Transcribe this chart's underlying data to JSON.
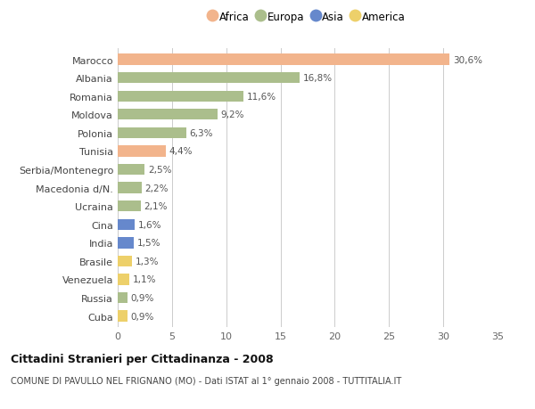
{
  "countries": [
    "Marocco",
    "Albania",
    "Romania",
    "Moldova",
    "Polonia",
    "Tunisia",
    "Serbia/Montenegro",
    "Macedonia d/N.",
    "Ucraina",
    "Cina",
    "India",
    "Brasile",
    "Venezuela",
    "Russia",
    "Cuba"
  ],
  "values": [
    30.6,
    16.8,
    11.6,
    9.2,
    6.3,
    4.4,
    2.5,
    2.2,
    2.1,
    1.6,
    1.5,
    1.3,
    1.1,
    0.9,
    0.9
  ],
  "labels": [
    "30,6%",
    "16,8%",
    "11,6%",
    "9,2%",
    "6,3%",
    "4,4%",
    "2,5%",
    "2,2%",
    "2,1%",
    "1,6%",
    "1,5%",
    "1,3%",
    "1,1%",
    "0,9%",
    "0,9%"
  ],
  "continents": [
    "Africa",
    "Europa",
    "Europa",
    "Europa",
    "Europa",
    "Africa",
    "Europa",
    "Europa",
    "Europa",
    "Asia",
    "Asia",
    "America",
    "America",
    "Europa",
    "America"
  ],
  "colors": {
    "Africa": "#F2B48C",
    "Europa": "#ABBE8C",
    "Asia": "#6688CC",
    "America": "#EDD06A"
  },
  "xlim": [
    0,
    35
  ],
  "xticks": [
    0,
    5,
    10,
    15,
    20,
    25,
    30,
    35
  ],
  "title": "Cittadini Stranieri per Cittadinanza - 2008",
  "subtitle": "COMUNE DI PAVULLO NEL FRIGNANO (MO) - Dati ISTAT al 1° gennaio 2008 - TUTTITALIA.IT",
  "bg_color": "#ffffff",
  "grid_color": "#cccccc",
  "bar_height": 0.6,
  "legend_entries": [
    "Africa",
    "Europa",
    "Asia",
    "America"
  ]
}
